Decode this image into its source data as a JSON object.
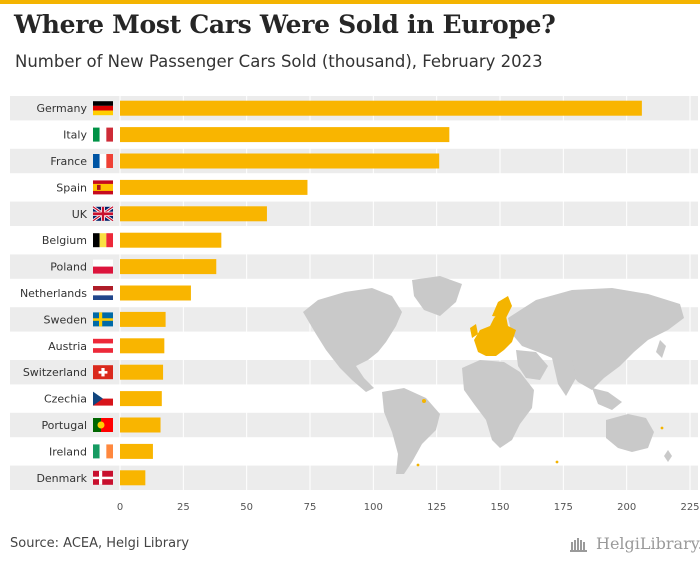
{
  "title": "Where Most Cars Were Sold in Europe?",
  "subtitle": "Number of New Passenger Cars Sold (thousand), February 2023",
  "source": "Source: ACEA, Helgi Library",
  "brand": "HelgiLibrary.",
  "colors": {
    "accent": "#f4b400",
    "bar": "#f9b500",
    "band": "#ececec",
    "map_land": "#c9c9c9",
    "map_highlight": "#f4b400"
  },
  "chart_data": {
    "type": "bar",
    "orientation": "horizontal",
    "categories": [
      "Germany",
      "Italy",
      "France",
      "Spain",
      "UK",
      "Belgium",
      "Poland",
      "Netherlands",
      "Sweden",
      "Austria",
      "Switzerland",
      "Czechia",
      "Portugal",
      "Ireland",
      "Denmark"
    ],
    "values": [
      206,
      130,
      126,
      74,
      58,
      40,
      38,
      28,
      18,
      17.5,
      17,
      16.5,
      16,
      13,
      10
    ],
    "flags": [
      "germany-flag",
      "italy-flag",
      "france-flag",
      "spain-flag",
      "uk-flag",
      "belgium-flag",
      "poland-flag",
      "netherlands-flag",
      "sweden-flag",
      "austria-flag",
      "switzerland-flag",
      "czechia-flag",
      "portugal-flag",
      "ireland-flag",
      "denmark-flag"
    ],
    "xlim": [
      0,
      225
    ],
    "xticks": [
      "0",
      "25",
      "50",
      "75",
      "100",
      "125",
      "150",
      "175",
      "200",
      "225"
    ],
    "grid": true,
    "xlabel": "",
    "ylabel": ""
  }
}
